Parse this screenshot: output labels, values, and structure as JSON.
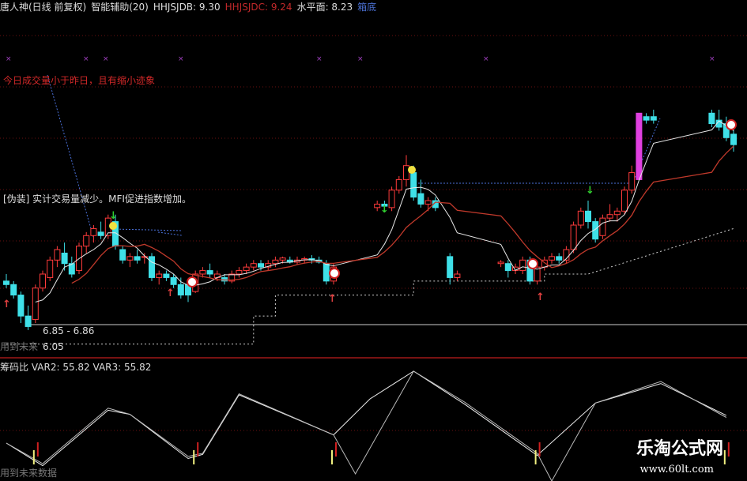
{
  "header": {
    "stock": "唐人神(日线 前复权)",
    "indicator": "智能辅助(20)",
    "hhjsjdb": "HHJSJDB: 9.30",
    "hhjsjdc": "HHJSJDC: 9.24",
    "level": "水平面: 8.23",
    "box": "箱底"
  },
  "annotations": {
    "volume_note": "今日成交量小于昨日，且有缩小迹象",
    "fake_note": "[伪装] 实计交易量减少。MFI促进指数增加。",
    "range": "6.85 - 6.86",
    "future_top": "用到未来",
    "price_low": "6.05",
    "future_bottom": "用到未来数据"
  },
  "lower_header": {
    "name": "筹码比",
    "var2": "VAR2: 55.82",
    "var3": "VAR3: 55.82"
  },
  "watermark": {
    "name": "乐淘公式网",
    "url": "www.60lt.com"
  },
  "colors": {
    "up": "#ff3b3b",
    "down": "#3fe0e8",
    "ma5": "#e8e8e8",
    "ma10": "#c0392b",
    "limit": "#e040e0",
    "grid": "#6a1010"
  },
  "chart_data": [
    {
      "type": "candlestick",
      "title": "",
      "ylim": [
        6.0,
        9.5
      ],
      "candles": [
        [
          0,
          6.95,
          7.05,
          6.85,
          6.9
        ],
        [
          1,
          6.9,
          6.95,
          6.7,
          6.75
        ],
        [
          2,
          6.75,
          6.8,
          6.35,
          6.45
        ],
        [
          3,
          6.45,
          6.6,
          6.25,
          6.3
        ],
        [
          4,
          6.4,
          6.9,
          6.35,
          6.85
        ],
        [
          5,
          6.85,
          7.1,
          6.8,
          7.05
        ],
        [
          6,
          7.0,
          7.3,
          6.95,
          7.25
        ],
        [
          7,
          7.25,
          7.45,
          7.15,
          7.4
        ],
        [
          8,
          7.35,
          7.5,
          7.1,
          7.2
        ],
        [
          9,
          7.2,
          7.3,
          7.0,
          7.05
        ],
        [
          10,
          7.1,
          7.5,
          7.05,
          7.45
        ],
        [
          11,
          7.45,
          7.65,
          7.35,
          7.6
        ],
        [
          12,
          7.6,
          7.75,
          7.5,
          7.7
        ],
        [
          13,
          7.65,
          7.8,
          7.55,
          7.6
        ],
        [
          14,
          7.6,
          7.9,
          7.55,
          7.85
        ],
        [
          15,
          7.8,
          7.9,
          7.4,
          7.45
        ],
        [
          16,
          7.4,
          7.45,
          7.2,
          7.25
        ],
        [
          17,
          7.25,
          7.35,
          7.15,
          7.3
        ],
        [
          18,
          7.3,
          7.4,
          7.2,
          7.25
        ],
        [
          19,
          7.3,
          7.35,
          7.2,
          7.3
        ],
        [
          20,
          7.3,
          7.35,
          6.95,
          7.0
        ],
        [
          21,
          7.0,
          7.1,
          6.9,
          7.05
        ],
        [
          22,
          7.05,
          7.1,
          6.95,
          7.0
        ],
        [
          23,
          7.0,
          7.05,
          6.85,
          6.9
        ],
        [
          24,
          6.9,
          7.0,
          6.7,
          6.75
        ],
        [
          25,
          6.9,
          6.95,
          6.65,
          6.75
        ],
        [
          26,
          6.8,
          7.1,
          6.78,
          7.05
        ],
        [
          27,
          7.05,
          7.15,
          7.0,
          7.1
        ],
        [
          28,
          7.1,
          7.2,
          7.0,
          7.05
        ],
        [
          29,
          7.0,
          7.1,
          6.95,
          7.05
        ],
        [
          30,
          7.0,
          7.05,
          6.9,
          6.95
        ],
        [
          31,
          6.95,
          7.1,
          6.92,
          7.05
        ],
        [
          32,
          7.05,
          7.15,
          7.0,
          7.1
        ],
        [
          33,
          7.1,
          7.2,
          7.05,
          7.15
        ],
        [
          34,
          7.15,
          7.25,
          7.1,
          7.2
        ],
        [
          35,
          7.2,
          7.25,
          7.1,
          7.15
        ],
        [
          36,
          7.15,
          7.25,
          7.1,
          7.2
        ],
        [
          37,
          7.2,
          7.3,
          7.15,
          7.25
        ],
        [
          38,
          7.25,
          7.3,
          7.2,
          7.28
        ],
        [
          39,
          7.25,
          7.3,
          7.2,
          7.22
        ],
        [
          40,
          7.22,
          7.3,
          7.18,
          7.25
        ],
        [
          41,
          7.25,
          7.3,
          7.2,
          7.27
        ],
        [
          42,
          7.27,
          7.32,
          7.2,
          7.25
        ],
        [
          43,
          7.25,
          7.3,
          7.2,
          7.22
        ],
        [
          44,
          7.2,
          7.25,
          6.9,
          6.95
        ],
        [
          45,
          6.95,
          7.2,
          6.9,
          7.15
        ],
        [
          51,
          8.0,
          8.1,
          7.95,
          8.05
        ],
        [
          52,
          8.05,
          8.1,
          8.0,
          8.02
        ],
        [
          53,
          8.0,
          8.3,
          7.95,
          8.25
        ],
        [
          54,
          8.25,
          8.45,
          8.2,
          8.4
        ],
        [
          55,
          8.4,
          8.75,
          8.3,
          8.6
        ],
        [
          56,
          8.5,
          8.6,
          8.1,
          8.15
        ],
        [
          57,
          8.2,
          8.4,
          8.0,
          8.05
        ],
        [
          58,
          8.05,
          8.15,
          7.95,
          8.1
        ],
        [
          59,
          8.1,
          8.15,
          7.95,
          8.0
        ],
        [
          61,
          7.3,
          7.35,
          6.9,
          7.0
        ],
        [
          62,
          7.0,
          7.1,
          6.95,
          7.05
        ],
        [
          68,
          7.2,
          7.25,
          7.15,
          7.22
        ],
        [
          69,
          7.2,
          7.25,
          7.0,
          7.1
        ],
        [
          70,
          7.1,
          7.2,
          7.05,
          7.15
        ],
        [
          71,
          7.1,
          7.3,
          7.05,
          7.25
        ],
        [
          72,
          7.25,
          7.3,
          6.9,
          6.95
        ],
        [
          73,
          6.95,
          7.2,
          6.9,
          7.15
        ],
        [
          74,
          7.15,
          7.3,
          7.1,
          7.25
        ],
        [
          75,
          7.25,
          7.35,
          7.2,
          7.3
        ],
        [
          76,
          7.3,
          7.35,
          7.2,
          7.25
        ],
        [
          77,
          7.25,
          7.45,
          7.2,
          7.4
        ],
        [
          78,
          7.4,
          7.8,
          7.35,
          7.75
        ],
        [
          79,
          7.75,
          8.0,
          7.7,
          7.95
        ],
        [
          80,
          7.95,
          8.1,
          7.7,
          7.8
        ],
        [
          81,
          7.8,
          7.85,
          7.5,
          7.55
        ],
        [
          82,
          7.6,
          7.9,
          7.55,
          7.85
        ],
        [
          83,
          7.85,
          8.05,
          7.8,
          7.9
        ],
        [
          84,
          7.9,
          8.0,
          7.8,
          7.95
        ],
        [
          85,
          7.95,
          8.3,
          7.9,
          8.25
        ],
        [
          86,
          8.25,
          8.6,
          8.2,
          8.5
        ],
        [
          87,
          8.4,
          9.35,
          8.4,
          9.35
        ],
        [
          88,
          9.3,
          9.35,
          9.2,
          9.25
        ],
        [
          89,
          9.3,
          9.4,
          9.2,
          9.25
        ],
        [
          97,
          9.35,
          9.4,
          9.15,
          9.2
        ],
        [
          98,
          9.25,
          9.4,
          9.1,
          9.15
        ],
        [
          99,
          9.2,
          9.3,
          8.95,
          9.0
        ],
        [
          100,
          9.05,
          9.2,
          8.8,
          8.9
        ]
      ],
      "limit_up_index": [
        87
      ],
      "support_line": [
        [
          0,
          6.05
        ],
        [
          34,
          6.05
        ],
        [
          34,
          6.45
        ],
        [
          37,
          6.45
        ],
        [
          37,
          6.75
        ],
        [
          56,
          6.75
        ],
        [
          56,
          6.95
        ],
        [
          74,
          6.95
        ],
        [
          74,
          7.05
        ],
        [
          80,
          7.05
        ],
        [
          100,
          7.7
        ]
      ]
    },
    {
      "type": "line",
      "title": "筹码比",
      "ylim": [
        0,
        100
      ],
      "series": [
        {
          "name": "VAR2",
          "x": [
            0,
            5,
            14,
            17,
            25,
            27,
            32,
            45,
            50,
            56,
            63,
            73,
            81,
            90,
            99
          ],
          "values": [
            30,
            8,
            62,
            58,
            15,
            19,
            77,
            38,
            73,
            100,
            68,
            18,
            69,
            88,
            57
          ]
        },
        {
          "name": "VAR3",
          "x": [
            0,
            5,
            14,
            17,
            25,
            27,
            32,
            45,
            48,
            56,
            63,
            73,
            75,
            81,
            90,
            99
          ],
          "values": [
            30,
            10,
            64,
            58,
            17,
            20,
            78,
            38,
            0,
            100,
            70,
            20,
            -10,
            69,
            90,
            55
          ]
        }
      ],
      "signal_index": [
        4,
        26,
        45,
        73,
        99
      ]
    }
  ]
}
